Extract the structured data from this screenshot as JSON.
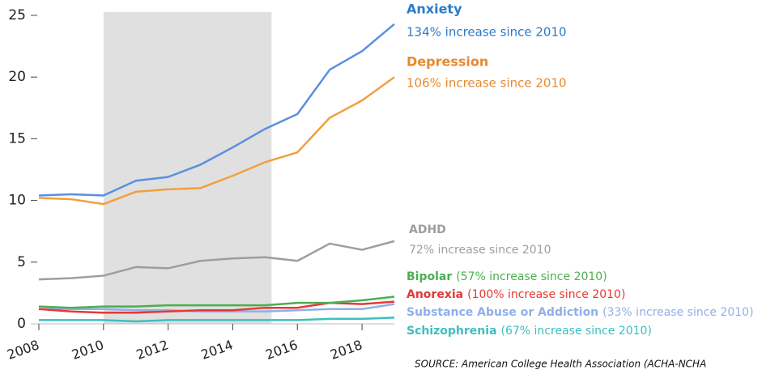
{
  "chart_data": {
    "type": "line",
    "source": "SOURCE: American College Health Association (ACHA-NCHA",
    "x": [
      2008,
      2009,
      2010,
      2011,
      2012,
      2013,
      2014,
      2015,
      2016,
      2017,
      2018,
      2019
    ],
    "xlim": [
      2008,
      2019
    ],
    "xticks": [
      2008,
      2010,
      2012,
      2014,
      2016,
      2018
    ],
    "ylim": [
      0,
      25
    ],
    "yticks": [
      0,
      5,
      10,
      15,
      20,
      25
    ],
    "shade": [
      2010,
      2015.2
    ],
    "shade_color": "#e0e0e0",
    "series": [
      {
        "name": "Anxiety",
        "note": "134% increase since 2010",
        "color": "#5b8fe0",
        "label_color": "#2a7bc8",
        "values": [
          10.4,
          10.5,
          10.4,
          11.6,
          11.9,
          12.9,
          14.3,
          15.8,
          17.0,
          20.6,
          22.1,
          24.3
        ]
      },
      {
        "name": "Depression",
        "note": "106% increase since 2010",
        "color": "#f0a040",
        "label_color": "#e8892e",
        "values": [
          10.2,
          10.1,
          9.7,
          10.7,
          10.9,
          11.0,
          12.0,
          13.1,
          13.9,
          16.7,
          18.1,
          20.0
        ]
      },
      {
        "name": "ADHD",
        "note": "72% increase since 2010",
        "color": "#9e9e9e",
        "label_color": "#9e9e9e",
        "values": [
          3.6,
          3.7,
          3.9,
          4.6,
          4.5,
          5.1,
          5.3,
          5.4,
          5.1,
          6.5,
          6.0,
          6.7
        ]
      },
      {
        "name": "Bipolar",
        "note": "(57% increase since 2010)",
        "color": "#4caf50",
        "label_color": "#4caf50",
        "values": [
          1.4,
          1.3,
          1.4,
          1.4,
          1.5,
          1.5,
          1.5,
          1.5,
          1.7,
          1.7,
          1.9,
          2.2
        ]
      },
      {
        "name": "Anorexia",
        "note": "(100% increase since 2010)",
        "color": "#e53935",
        "label_color": "#e53935",
        "values": [
          1.2,
          1.0,
          0.9,
          0.9,
          1.0,
          1.1,
          1.1,
          1.3,
          1.3,
          1.7,
          1.6,
          1.8
        ]
      },
      {
        "name": "Substance Abuse or Addiction",
        "note": "(33% increase since 2010)",
        "color": "#8fb0e8",
        "label_color": "#8fb0e8",
        "values": [
          1.2,
          1.2,
          1.2,
          1.1,
          1.1,
          1.0,
          1.0,
          1.0,
          1.1,
          1.2,
          1.2,
          1.6
        ]
      },
      {
        "name": "Schizophrenia",
        "note": "(67% increase since 2010)",
        "color": "#3cbfbf",
        "label_color": "#3cbfbf",
        "values": [
          0.3,
          0.3,
          0.3,
          0.2,
          0.3,
          0.3,
          0.3,
          0.3,
          0.3,
          0.4,
          0.4,
          0.5
        ]
      }
    ]
  }
}
